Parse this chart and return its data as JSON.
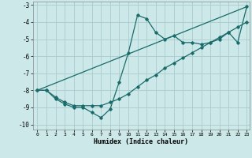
{
  "xlabel": "Humidex (Indice chaleur)",
  "ylabel": "",
  "bg_color": "#cce8e8",
  "grid_color": "#aacccc",
  "line_color": "#1a6b6b",
  "xlim": [
    -0.5,
    23.3
  ],
  "ylim": [
    -10.3,
    -2.8
  ],
  "xticks": [
    0,
    1,
    2,
    3,
    4,
    5,
    6,
    7,
    8,
    9,
    10,
    11,
    12,
    13,
    14,
    15,
    16,
    17,
    18,
    19,
    20,
    21,
    22,
    23
  ],
  "yticks": [
    -10,
    -9,
    -8,
    -7,
    -6,
    -5,
    -4,
    -3
  ],
  "series1_x": [
    0,
    1,
    2,
    3,
    4,
    5,
    6,
    7,
    8,
    9,
    10,
    11,
    12,
    13,
    14,
    15,
    16,
    17,
    18,
    19,
    20,
    21,
    22,
    23
  ],
  "series1_y": [
    -8.0,
    -8.0,
    -8.5,
    -8.8,
    -9.0,
    -9.0,
    -9.3,
    -9.6,
    -9.1,
    -7.5,
    -5.8,
    -3.6,
    -3.8,
    -4.6,
    -5.0,
    -4.8,
    -5.2,
    -5.2,
    -5.3,
    -5.2,
    -5.0,
    -4.6,
    -5.2,
    -3.1
  ],
  "series2_x": [
    0,
    1,
    2,
    3,
    4,
    5,
    6,
    7,
    8,
    9,
    10,
    11,
    12,
    13,
    14,
    15,
    16,
    17,
    18,
    19,
    20,
    21,
    22,
    23
  ],
  "series2_y": [
    -8.0,
    -8.0,
    -8.4,
    -8.7,
    -8.9,
    -8.9,
    -8.9,
    -8.9,
    -8.7,
    -8.5,
    -8.2,
    -7.8,
    -7.4,
    -7.1,
    -6.7,
    -6.4,
    -6.1,
    -5.8,
    -5.5,
    -5.2,
    -4.9,
    -4.6,
    -4.3,
    -4.0
  ],
  "series3_x": [
    0,
    23
  ],
  "series3_y": [
    -8.0,
    -3.1
  ]
}
